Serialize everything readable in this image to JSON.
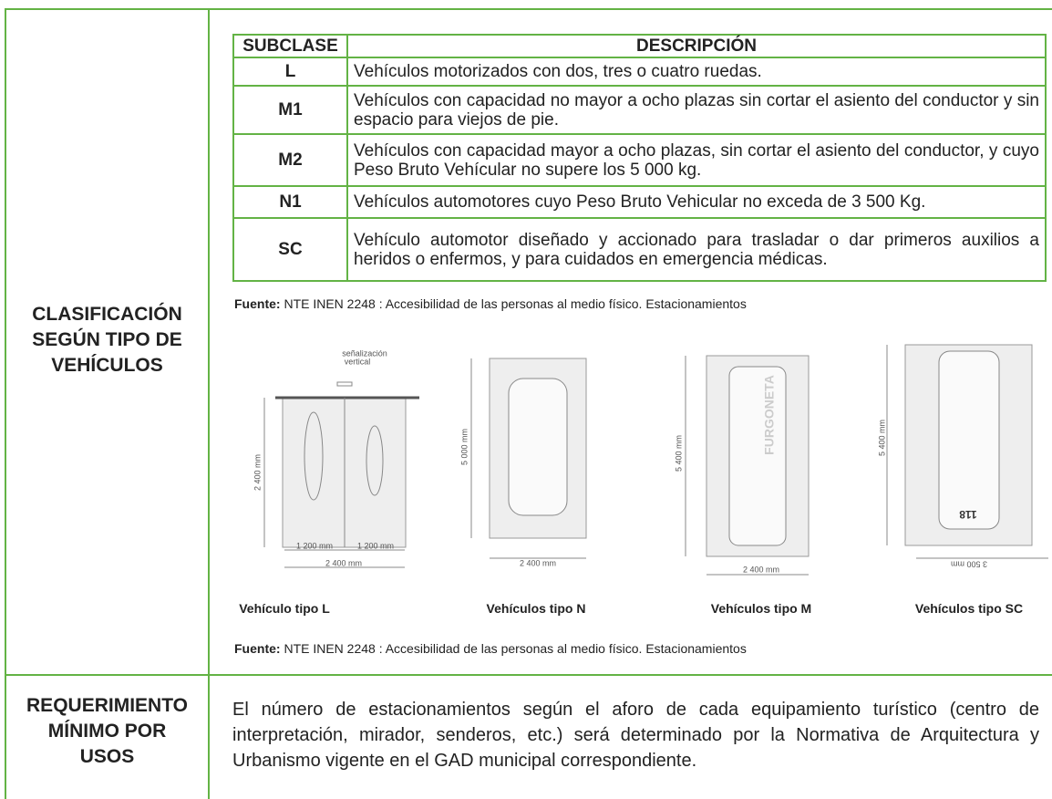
{
  "row1": {
    "heading": [
      "CLASIFICACIÓN",
      "SEGÚN TIPO DE",
      "VEHÍCULOS"
    ]
  },
  "table": {
    "header": [
      "SUBCLASE",
      "DESCRIPCIÓN"
    ],
    "rows": [
      [
        "L",
        "Vehículos motorizados con dos, tres o cuatro ruedas."
      ],
      [
        "M1",
        "Vehículos con capacidad no mayor a ocho plazas sin cortar el asiento del conductor y sin espacio para viejos de pie."
      ],
      [
        "M2",
        "Vehículos con capacidad mayor a ocho plazas, sin cortar el asiento del conductor, y cuyo Peso Bruto Vehícular no supere los 5 000 kg."
      ],
      [
        "N1",
        "Vehículos automotores cuyo Peso Bruto Vehicular no exceda de 3 500 Kg."
      ],
      [
        "SC",
        "Vehículo automotor diseñado y accionado para trasladar o dar primeros auxilios a heridos o enfermos, y para cuidados en emergencia médicas."
      ]
    ]
  },
  "source_1": {
    "label": "Fuente:",
    "text": "NTE INEN 2248 : Accesibilidad de las personas al medio físico. Estacionamientos"
  },
  "figures": [
    {
      "caption": "Vehículo tipo L",
      "labels": [
        "señalización",
        "vertical",
        "2 400 mm",
        "1 200 mm",
        "1 200 mm",
        "2 400 mm"
      ]
    },
    {
      "caption": "Vehículos tipo N",
      "labels": [
        "5 000 mm",
        "2 400 mm"
      ]
    },
    {
      "caption": "Vehículos tipo M",
      "labels": [
        "FURGONETA",
        "5 400 mm",
        "2 400 mm"
      ]
    },
    {
      "caption": "Vehículos tipo SC",
      "labels": [
        "118",
        "5 400 mm",
        "3 500 mm"
      ]
    }
  ],
  "source_2": {
    "label": "Fuente:",
    "text": "NTE INEN 2248 : Accesibilidad de las personas al medio físico. Estacionamientos"
  },
  "row2": {
    "heading": [
      "REQUERIMIENTO",
      "MÍNIMO POR",
      "USOS"
    ],
    "text": "El número de estacionamientos según el aforo de cada equipamiento turístico (centro de interpretación, mirador, senderos, etc.) será determinado por la Normativa de Arquitectura y Urbanismo vigente en el GAD municipal correspondiente."
  }
}
